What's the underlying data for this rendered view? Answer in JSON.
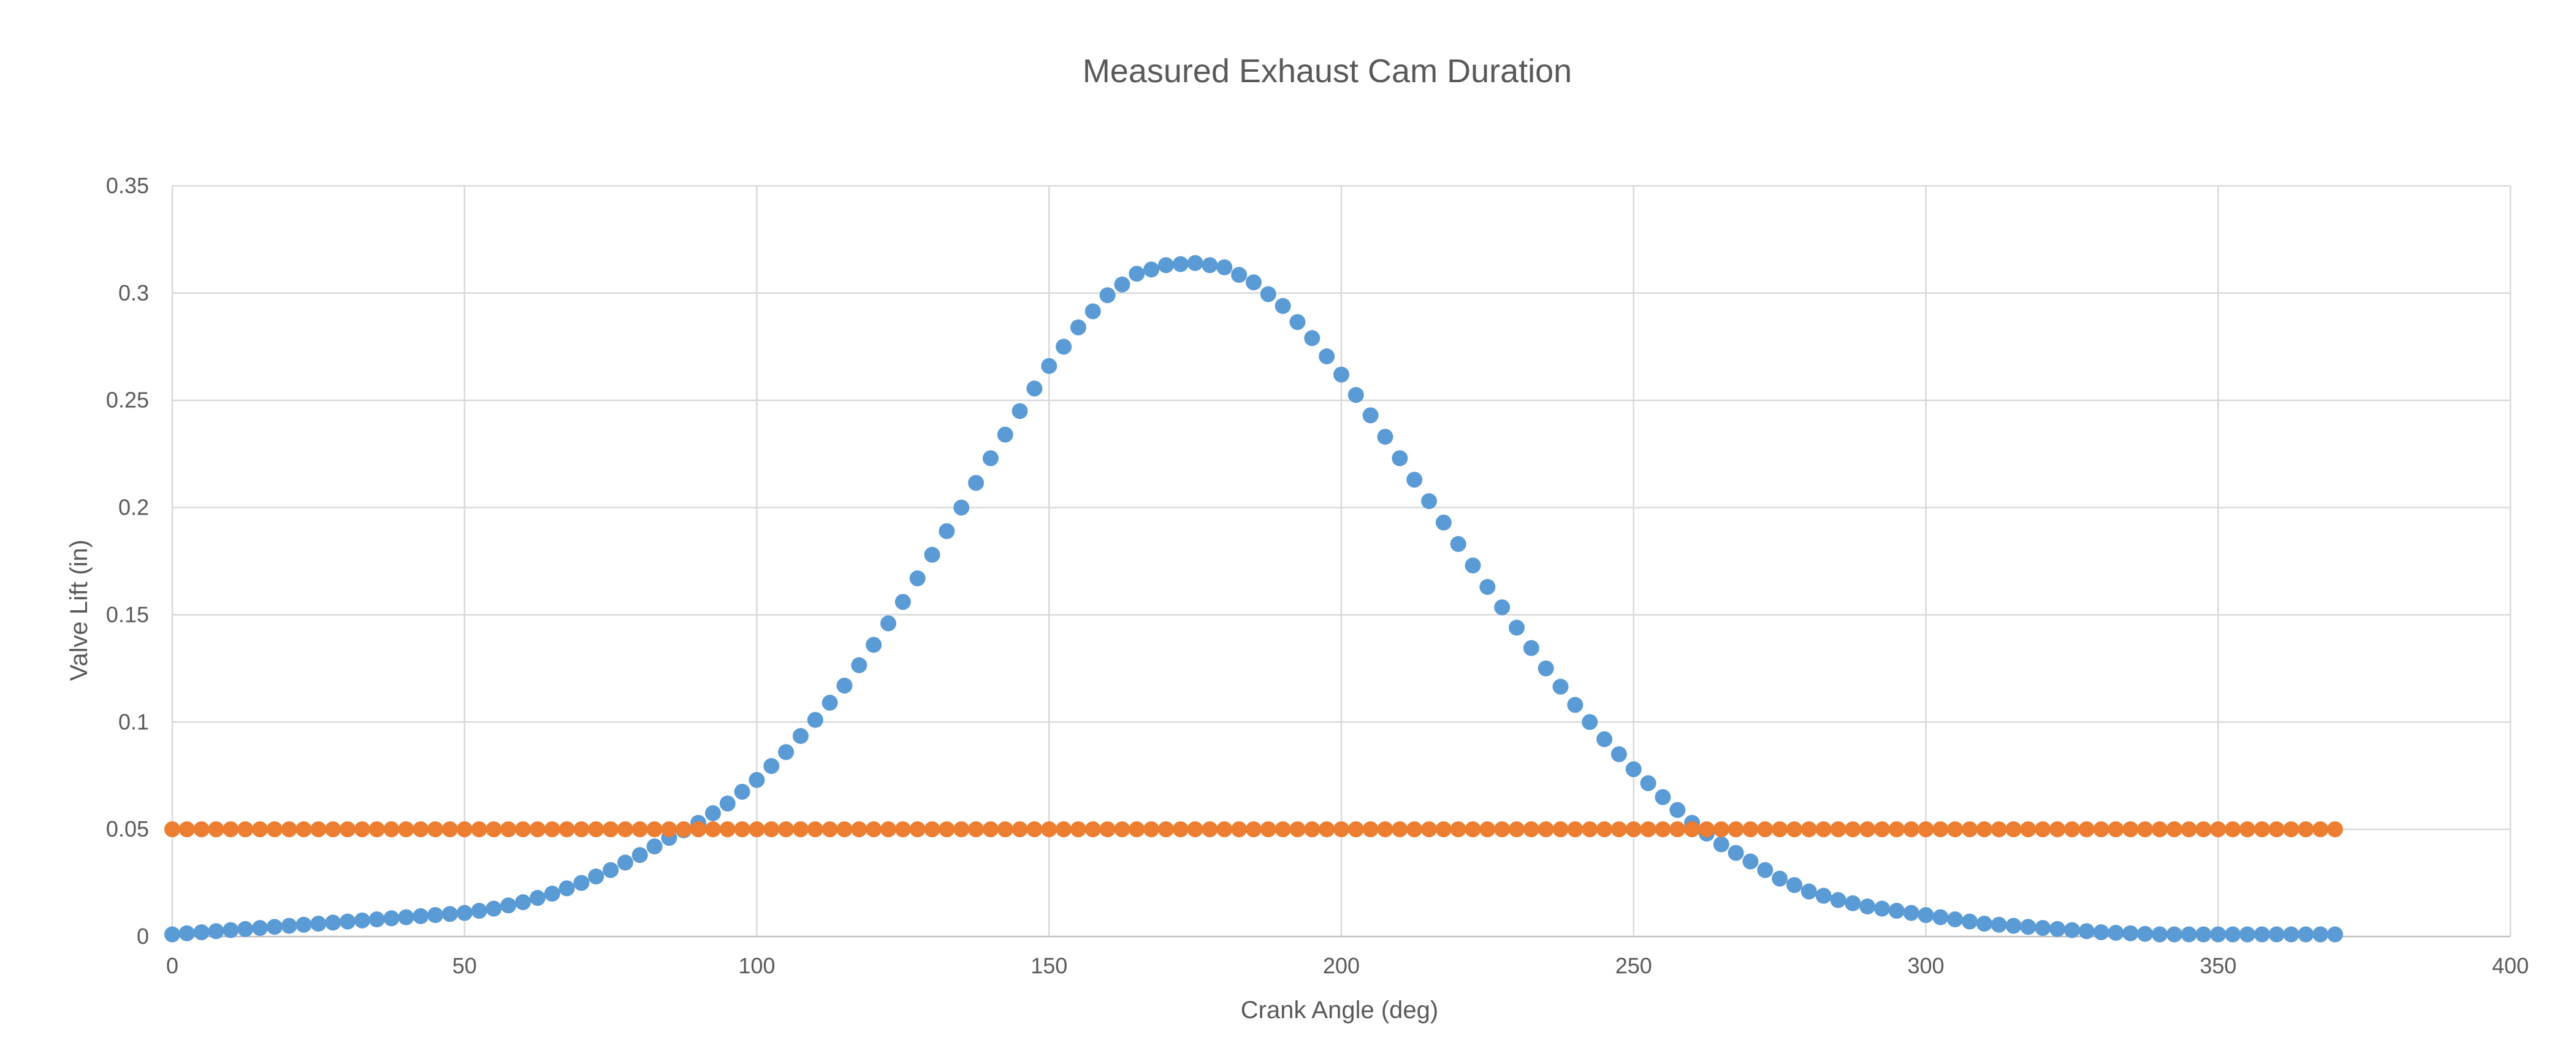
{
  "chart_data": {
    "type": "scatter",
    "title": "Measured Exhaust Cam Duration",
    "xlabel": "Crank Angle (deg)",
    "ylabel": "Valve Lift (in)",
    "xlim": [
      0,
      400
    ],
    "ylim": [
      0,
      0.35
    ],
    "xticks": [
      "0",
      "50",
      "100",
      "150",
      "200",
      "250",
      "300",
      "350",
      "400"
    ],
    "yticks": [
      "0",
      "0.05",
      "0.1",
      "0.15",
      "0.2",
      "0.25",
      "0.3",
      "0.35"
    ],
    "grid": true,
    "legend": "none",
    "series": [
      {
        "color": "#5b9bd5",
        "x": [
          0,
          5,
          10,
          15,
          20,
          25,
          30,
          35,
          40,
          45,
          50,
          55,
          60,
          65,
          70,
          75,
          80,
          85,
          90,
          95,
          100,
          105,
          110,
          115,
          120,
          125,
          130,
          135,
          140,
          145,
          150,
          155,
          160,
          165,
          170,
          175,
          180,
          185,
          190,
          195,
          200,
          205,
          210,
          215,
          220,
          225,
          230,
          235,
          240,
          245,
          250,
          255,
          260,
          265,
          270,
          275,
          280,
          285,
          290,
          295,
          300,
          305,
          310,
          315,
          320,
          325,
          330,
          335,
          340,
          345,
          350,
          355,
          360,
          365,
          370
        ],
        "y": [
          0.001,
          0.002,
          0.003,
          0.004,
          0.005,
          0.006,
          0.007,
          0.008,
          0.009,
          0.01,
          0.011,
          0.013,
          0.016,
          0.02,
          0.025,
          0.031,
          0.038,
          0.046,
          0.053,
          0.062,
          0.073,
          0.086,
          0.101,
          0.117,
          0.136,
          0.156,
          0.178,
          0.2,
          0.223,
          0.245,
          0.266,
          0.284,
          0.299,
          0.309,
          0.313,
          0.314,
          0.312,
          0.305,
          0.294,
          0.279,
          0.262,
          0.243,
          0.223,
          0.203,
          0.183,
          0.163,
          0.144,
          0.125,
          0.108,
          0.092,
          0.078,
          0.065,
          0.053,
          0.043,
          0.035,
          0.027,
          0.021,
          0.017,
          0.014,
          0.012,
          0.01,
          0.008,
          0.006,
          0.005,
          0.004,
          0.003,
          0.002,
          0.0015,
          0.001,
          0.001,
          0.001,
          0.001,
          0.001,
          0.001,
          0.001
        ]
      },
      {
        "color": "#ed7d31",
        "x": [
          0,
          5,
          10,
          15,
          20,
          25,
          30,
          35,
          40,
          45,
          50,
          55,
          60,
          65,
          70,
          75,
          80,
          85,
          90,
          95,
          100,
          105,
          110,
          115,
          120,
          125,
          130,
          135,
          140,
          145,
          150,
          155,
          160,
          165,
          170,
          175,
          180,
          185,
          190,
          195,
          200,
          205,
          210,
          215,
          220,
          225,
          230,
          235,
          240,
          245,
          250,
          255,
          260,
          265,
          270,
          275,
          280,
          285,
          290,
          295,
          300,
          305,
          310,
          315,
          320,
          325,
          330,
          335,
          340,
          345,
          350,
          355,
          360,
          365,
          370
        ],
        "y": [
          0.05,
          0.05,
          0.05,
          0.05,
          0.05,
          0.05,
          0.05,
          0.05,
          0.05,
          0.05,
          0.05,
          0.05,
          0.05,
          0.05,
          0.05,
          0.05,
          0.05,
          0.05,
          0.05,
          0.05,
          0.05,
          0.05,
          0.05,
          0.05,
          0.05,
          0.05,
          0.05,
          0.05,
          0.05,
          0.05,
          0.05,
          0.05,
          0.05,
          0.05,
          0.05,
          0.05,
          0.05,
          0.05,
          0.05,
          0.05,
          0.05,
          0.05,
          0.05,
          0.05,
          0.05,
          0.05,
          0.05,
          0.05,
          0.05,
          0.05,
          0.05,
          0.05,
          0.05,
          0.05,
          0.05,
          0.05,
          0.05,
          0.05,
          0.05,
          0.05,
          0.05,
          0.05,
          0.05,
          0.05,
          0.05,
          0.05,
          0.05,
          0.05,
          0.05,
          0.05,
          0.05,
          0.05,
          0.05,
          0.05,
          0.05
        ]
      }
    ]
  }
}
